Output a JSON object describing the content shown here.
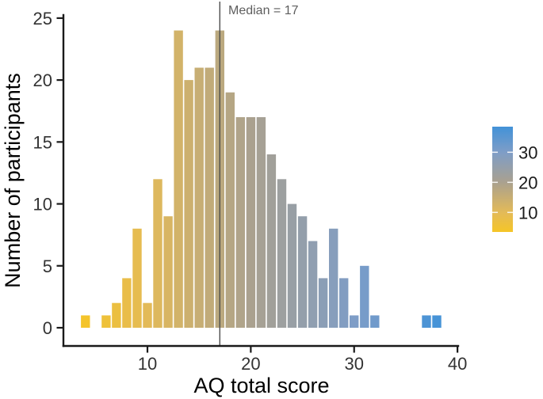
{
  "chart_data": {
    "type": "bar",
    "subtype": "histogram",
    "title": "",
    "xlabel": "AQ total score",
    "ylabel": "Number of participants",
    "bins": [
      4,
      5,
      6,
      7,
      8,
      9,
      10,
      11,
      12,
      13,
      14,
      15,
      16,
      17,
      18,
      19,
      20,
      21,
      22,
      23,
      24,
      25,
      26,
      27,
      28,
      29,
      30,
      31,
      32,
      33,
      34,
      35,
      36,
      37,
      38
    ],
    "counts": [
      1,
      0,
      1,
      2,
      4,
      8,
      2,
      12,
      9,
      24,
      20,
      21,
      21,
      24,
      19,
      17,
      17,
      17,
      14,
      12,
      10,
      9,
      7,
      4,
      8,
      4,
      1,
      5,
      1,
      0,
      0,
      0,
      0,
      1,
      1
    ],
    "bin_width": 1,
    "xlim": [
      3,
      41
    ],
    "ylim": [
      0,
      25
    ],
    "x_ticks": [
      10,
      20,
      30,
      40
    ],
    "y_ticks": [
      0,
      5,
      10,
      15,
      20,
      25
    ],
    "grid": "off",
    "median": 17,
    "median_label": "Median = 17",
    "legend": {
      "position": "right",
      "orientation": "vertical",
      "tick_values": [
        30,
        20,
        10
      ],
      "value_range": [
        3.5,
        38.5
      ]
    },
    "colors": {
      "scale_stops": [
        {
          "value": 3.5,
          "color": "#f5c527"
        },
        {
          "value": 10,
          "color": "#e3ba58"
        },
        {
          "value": 20,
          "color": "#aaa18f"
        },
        {
          "value": 30,
          "color": "#7e9dc7"
        },
        {
          "value": 38.5,
          "color": "#4292d8"
        }
      ],
      "axis": "#1a1a1a",
      "tick_label": "#333333",
      "median_line": "#4d4d4d",
      "annotation_text": "#5e5e5e",
      "background": "#ffffff"
    }
  }
}
